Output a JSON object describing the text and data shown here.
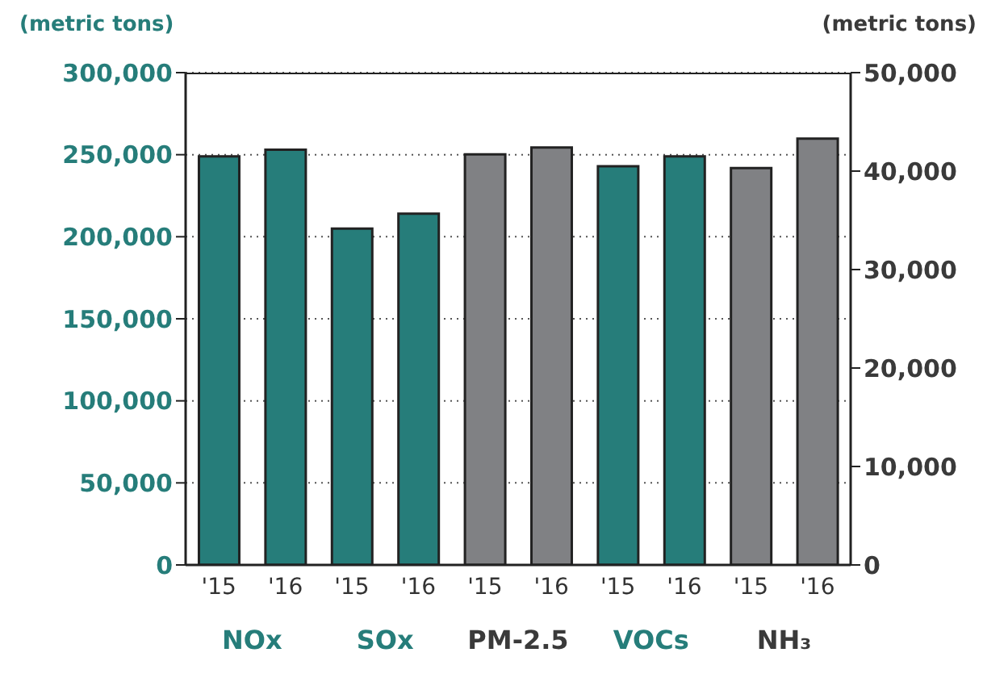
{
  "chart_data": {
    "type": "bar",
    "ylabel": "(metric tons)",
    "y2label": "(metric tons)",
    "categories": [
      "'15",
      "'16",
      "'15",
      "'16",
      "'15",
      "'16",
      "'15",
      "'16",
      "'15",
      "'16"
    ],
    "series": [
      {
        "color": "#267d7a",
        "values": [
          249000,
          253000,
          205000,
          214000,
          null,
          null,
          243000,
          249000,
          null,
          null
        ]
      },
      {
        "color": "#808184",
        "axis": "y2",
        "values": [
          null,
          null,
          null,
          null,
          41700,
          42400,
          null,
          null,
          40300,
          43300
        ]
      }
    ],
    "ylim": [
      0,
      300000
    ],
    "yticks": [
      0,
      {
        "value": 50000,
        "label": "50,000"
      },
      {
        "value": 100000,
        "label": "100,000"
      },
      {
        "value": 150000,
        "label": "150,000"
      },
      {
        "value": 200000,
        "label": "200,000"
      },
      {
        "value": 250000,
        "label": "250,000"
      },
      {
        "value": 300000,
        "label": "300,000"
      }
    ],
    "y2lim": [
      0,
      50000
    ],
    "y2ticks": [
      0,
      {
        "value": 10000,
        "label": "10,000"
      },
      {
        "value": 20000,
        "label": "20,000"
      },
      {
        "value": 30000,
        "label": "30,000"
      },
      {
        "value": 40000,
        "label": "40,000"
      },
      {
        "value": 50000,
        "label": "50,000"
      }
    ],
    "grid": "y",
    "annotations": [
      "NOx",
      "SOx",
      "PM-2.5",
      "VOCs",
      "NH₃"
    ]
  }
}
